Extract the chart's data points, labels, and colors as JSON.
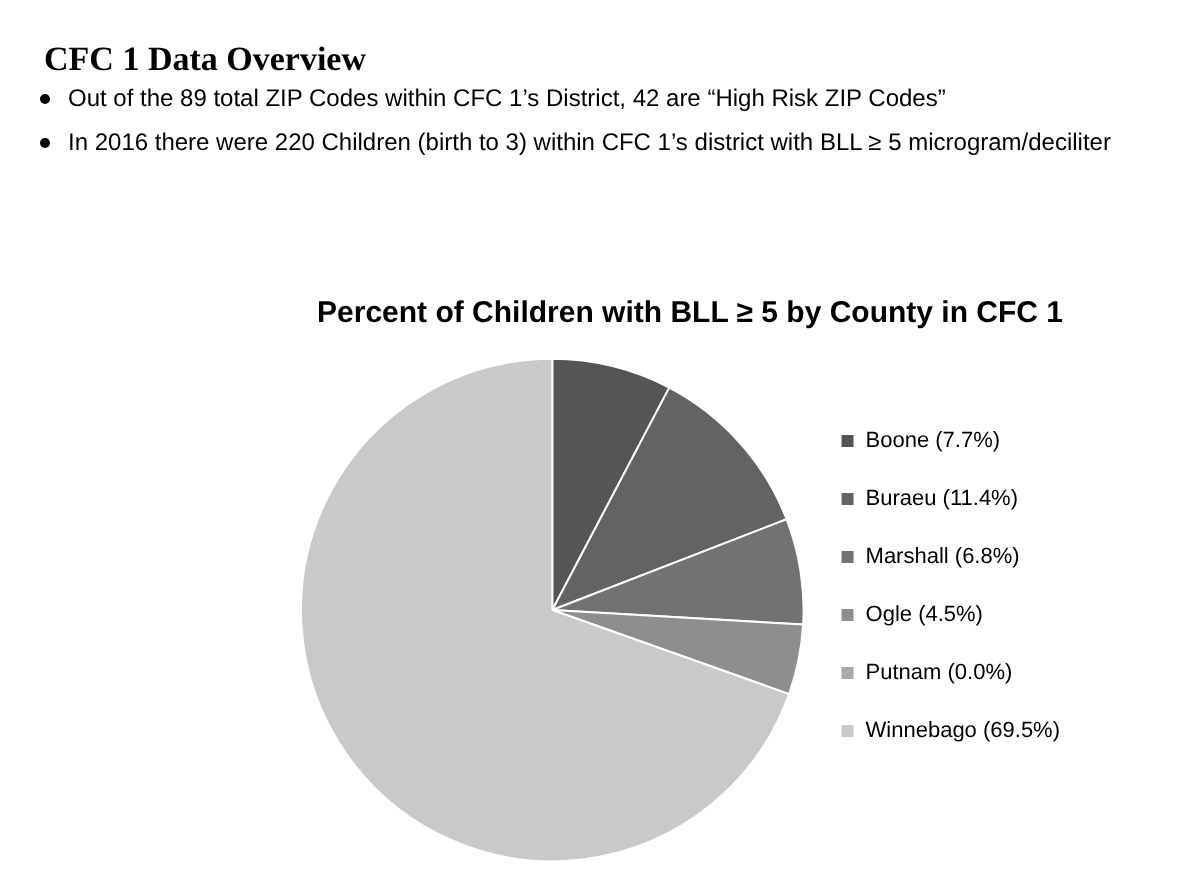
{
  "chart_data": {
    "type": "pie",
    "title": "Percent of Children with BLL ≥ 5 by County in CFC 1",
    "annotations": [
      "CFC 1 Data Overview",
      "Out of the 89 total ZIP Codes within CFC 1’s District, 42 are “High Risk ZIP Codes”",
      "In 2016 there were 220 Children (birth to 3) within CFC 1’s district with BLL ≥ 5 microgram/deciliter"
    ],
    "categories": [
      "Boone (7.7%)",
      "Buraeu (11.4%)",
      "Marshall (6.8%)",
      "Ogle (4.5%)",
      "Putnam (0.0%)",
      "Winnebago (69.5%)"
    ],
    "values": [
      7.7,
      11.4,
      6.8,
      4.5,
      0.0,
      69.5
    ],
    "colors": [
      "#555555",
      "#636363",
      "#727272",
      "#8e8e8e",
      "#a9a9a9",
      "#c9c9c9"
    ],
    "legend": "right"
  }
}
